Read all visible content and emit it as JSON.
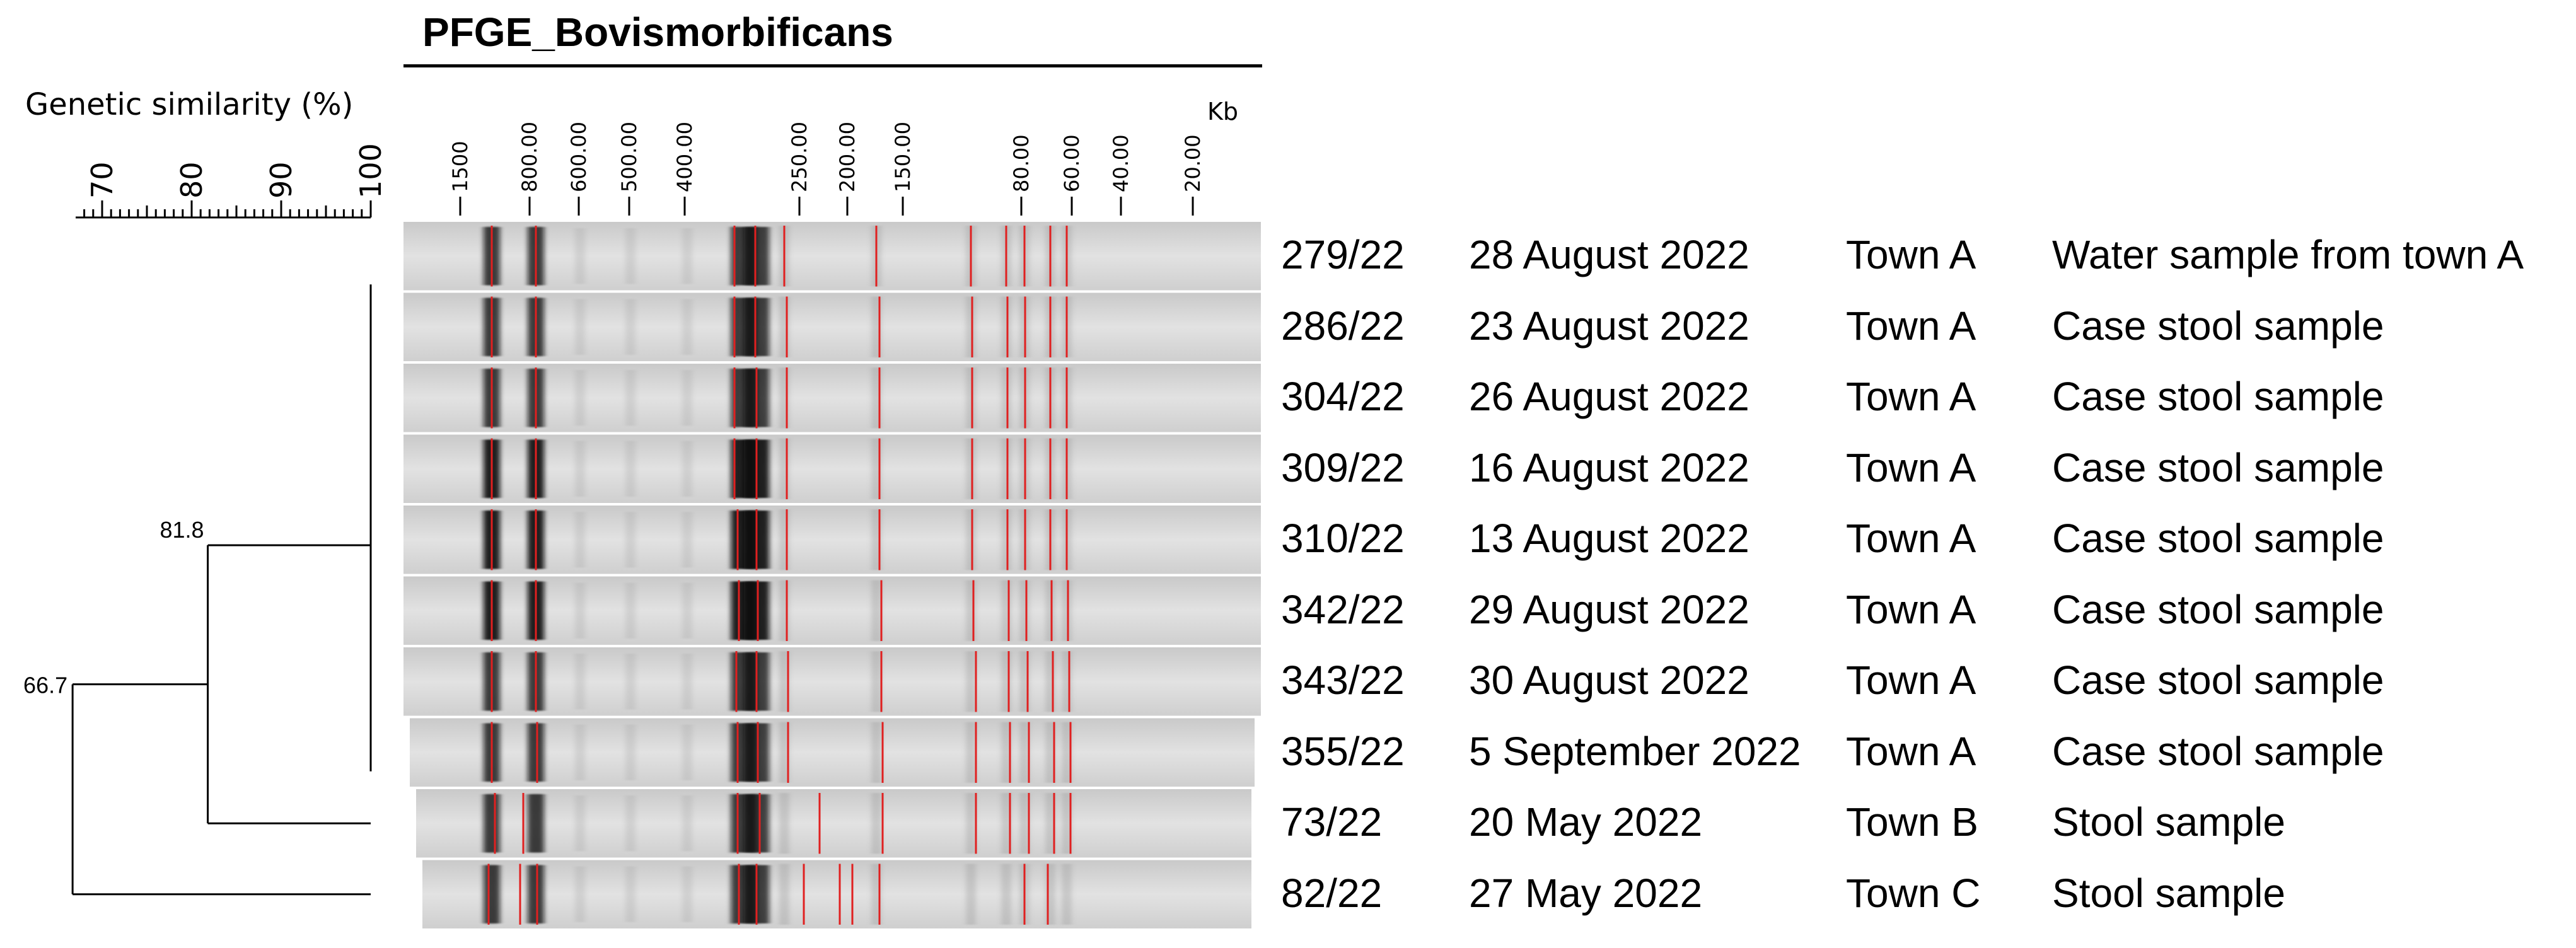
{
  "title": "PFGE_Bovismorbificans",
  "scale": {
    "label": "Genetic similarity (%)",
    "ticks": [
      70,
      80,
      90,
      100
    ]
  },
  "marker": {
    "unit": "Kb",
    "ticks": [
      "1500",
      "800.00",
      "600.00",
      "500.00",
      "400.00",
      "250.00",
      "200.00",
      "150.00",
      "80.00",
      "60.00",
      "40.00",
      "20.00"
    ]
  },
  "dendrogram": {
    "nodes": [
      {
        "label": "81.8",
        "similarity": 81.8
      },
      {
        "label": "66.7",
        "similarity": 66.7
      }
    ]
  },
  "isolates": [
    {
      "id": "279/22",
      "date": "28 August 2022",
      "town": "Town A",
      "sample": "Water sample from town A"
    },
    {
      "id": "286/22",
      "date": "23 August 2022",
      "town": "Town A",
      "sample": "Case stool sample"
    },
    {
      "id": "304/22",
      "date": "26 August 2022",
      "town": "Town A",
      "sample": "Case stool sample"
    },
    {
      "id": "309/22",
      "date": "16 August 2022",
      "town": "Town A",
      "sample": "Case stool sample"
    },
    {
      "id": "310/22",
      "date": "13 August 2022",
      "town": "Town A",
      "sample": "Case stool sample"
    },
    {
      "id": "342/22",
      "date": "29 August 2022",
      "town": "Town A",
      "sample": "Case stool sample"
    },
    {
      "id": "343/22",
      "date": "30 August 2022",
      "town": "Town A",
      "sample": "Case stool sample"
    },
    {
      "id": "355/22",
      "date": "5 September 2022",
      "town": "Town A",
      "sample": "Case stool sample"
    },
    {
      "id": "73/22",
      "date": "20 May 2022",
      "town": "Town B",
      "sample": "Stool sample"
    },
    {
      "id": "82/22",
      "date": "27 May 2022",
      "town": "Town C",
      "sample": "Stool sample"
    }
  ],
  "colors": {
    "band_marker": "#e02020",
    "gel_background": "#dcdcdc",
    "band_dark": "#111111"
  }
}
